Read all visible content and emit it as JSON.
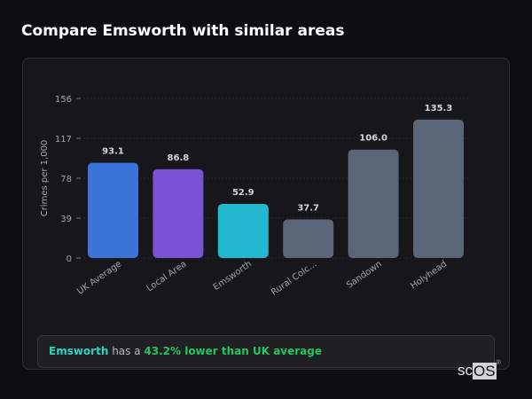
{
  "header": {
    "title": "Compare Emsworth with similar areas"
  },
  "chart_data": {
    "type": "bar",
    "title": "",
    "xlabel": "",
    "ylabel": "Crimes per 1,000",
    "ylim": [
      0,
      156
    ],
    "yticks": [
      0,
      39,
      78,
      117,
      156
    ],
    "grid": true,
    "categories": [
      "UK Average",
      "Local Area",
      "Emsworth",
      "Rural Colc...",
      "Sandown",
      "Holyhead"
    ],
    "values": [
      93.1,
      86.8,
      52.9,
      37.7,
      106.0,
      135.3
    ],
    "data_labels": [
      "93.1",
      "86.8",
      "52.9",
      "37.7",
      "106.0",
      "135.3"
    ],
    "colors": [
      "#3b74d9",
      "#7a52d4",
      "#22b8cf",
      "#5a6578",
      "#5a6578",
      "#5a6578"
    ]
  },
  "callout": {
    "place": "Emsworth",
    "middle": " has a ",
    "comparison": "43.2% lower than UK average"
  },
  "logo": {
    "text": "scOS"
  }
}
